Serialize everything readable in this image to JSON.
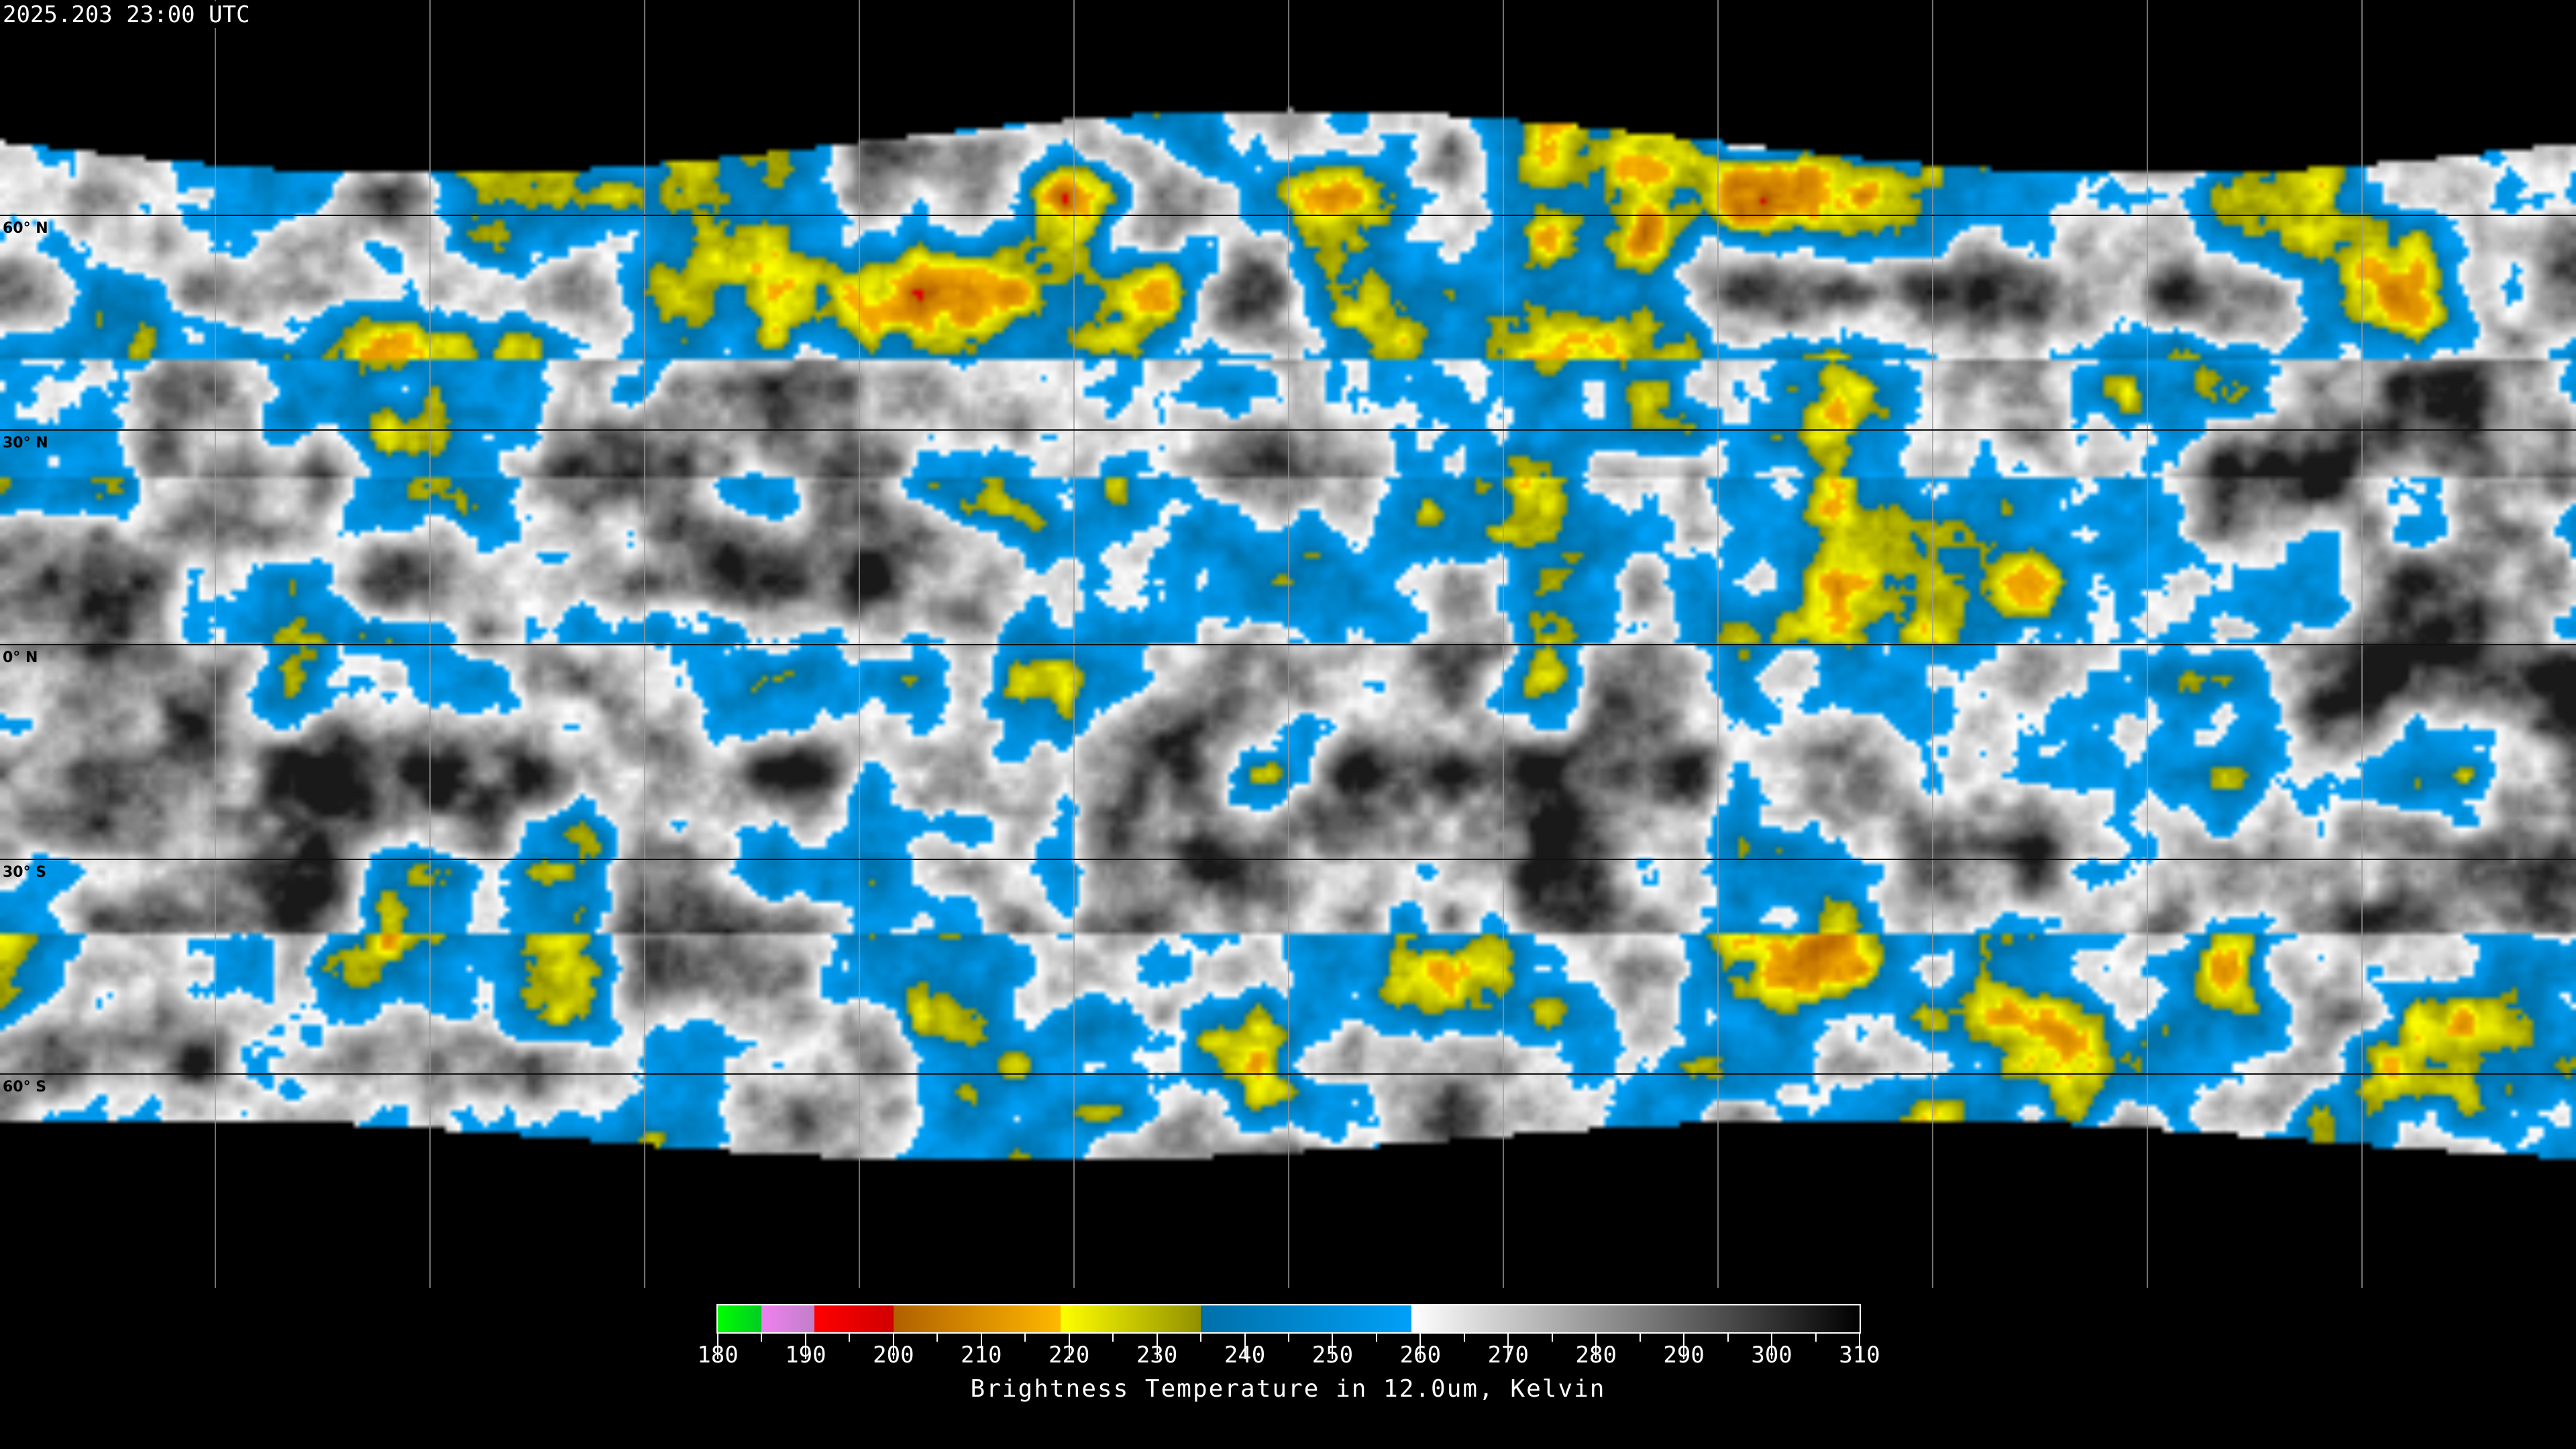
{
  "timestamp": "2025.203 23:00 UTC",
  "map": {
    "projection": "equirectangular",
    "lon_range": [
      -180,
      180
    ],
    "lat_range": [
      -90,
      90
    ],
    "grid_spacing_deg": 30,
    "lat_labels": [
      "60° N",
      "30° N",
      "0° N",
      "30° S",
      "60° S"
    ],
    "lat_values": [
      60,
      30,
      0,
      -30,
      -60
    ]
  },
  "colorbar": {
    "title": "Brightness Temperature in 12.0um, Kelvin",
    "min": 180,
    "max": 310,
    "tick_labels": [
      "180",
      "190",
      "200",
      "210",
      "220",
      "230",
      "240",
      "250",
      "260",
      "270",
      "280",
      "290",
      "300",
      "310"
    ],
    "segments": [
      {
        "from": 180,
        "to": 185,
        "colors": [
          "#00ff00",
          "#00cc22"
        ]
      },
      {
        "from": 185,
        "to": 191,
        "colors": [
          "#f080f0",
          "#c080c8"
        ]
      },
      {
        "from": 191,
        "to": 200,
        "colors": [
          "#ff0000",
          "#d00000"
        ]
      },
      {
        "from": 200,
        "to": 219,
        "colors": [
          "#b06000",
          "#ffb800"
        ]
      },
      {
        "from": 219,
        "to": 235,
        "colors": [
          "#ffff00",
          "#909000"
        ]
      },
      {
        "from": 235,
        "to": 259,
        "colors": [
          "#0070a8",
          "#00a0f8"
        ]
      },
      {
        "from": 259,
        "to": 310,
        "colors": [
          "#ffffff",
          "#000000"
        ]
      }
    ]
  }
}
